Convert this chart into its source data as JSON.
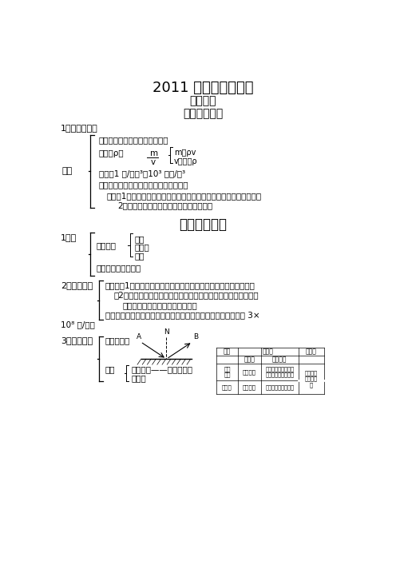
{
  "bg_color": "#ffffff",
  "text_color": "#000000",
  "title": "2011 年科学复习用书",
  "subtitle": "物理部分",
  "ch1_header": "第一册第一章",
  "ch2_header": "第二册第一章",
  "s1_title": "1、质量与密度",
  "density_label": "密度",
  "def_text": "定义：单位体积某种物质的质量",
  "formula_text": "公式：ρ＝",
  "formula_m": "m",
  "formula_v": "v",
  "eq1": "m＝ρv",
  "eq2": "v＝ｍ／ρ",
  "unit_text": "单位：1 克/厘米³＝10³ 千克/米³",
  "apply_text": "应用：求质量、体积及密度（物质鉴别）",
  "note1": "注意：1、密度是物质的一种特性，与物体的质量、体积的大小无关。",
  "note2": "2、密度相同的物质不一定是同一种物质。",
  "s1_wave": "1、波",
  "wave_exist": "波的存在",
  "wave1": "声波",
  "wave2": "电磁波",
  "wave3": "光波",
  "wave_func": "波的作用：传播信息",
  "s2_light": "2、光的传播",
  "feat1": "特点：（1）光的传播不需依赖于一定的物质，在真空中也能传播。",
  "feat2": "（2）在同一种物质中沿直线传播，在两种不同物质界面上会发生",
  "feat3": "在传播过程中光的路线是可逆的。",
  "speed_text": "速度：在不同物质中传播速度不同。在真空中光速最大，数値为 3×",
  "speed_unit": "10⁸ 米/秒。",
  "s3_reflect": "3、光的反射",
  "reflect_law": "反射定律：",
  "kinds": "种类",
  "mirror_reflect": "镜面反射——平面镜成像",
  "diffuse_reflect": "漫反射",
  "tbl_title1": "项目",
  "tbl_diff": "不同点",
  "tbl_same": "相同点",
  "tbl_surface": "反射面",
  "tbl_ray": "光线特点",
  "tbl_mirror_row": "镜面\n反射",
  "tbl_smooth": "平整光面",
  "tbl_mirror_feat": "如果入射光线平行，\n则反射光线仍平行。",
  "tbl_same_content": "都遵守光\n的反射定\n律",
  "tbl_diffuse_row": "漫反射",
  "tbl_rough": "粗糙不平",
  "tbl_diffuse_feat": "反射光线杂乱散漫。"
}
